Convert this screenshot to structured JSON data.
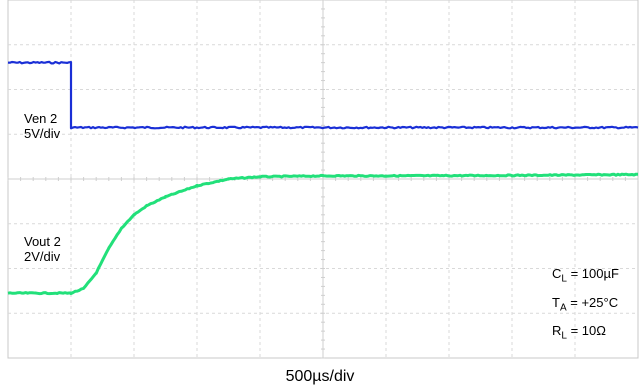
{
  "chart_data": {
    "type": "line",
    "x_scale_label": "500µs/div",
    "x_divisions": 10,
    "y_divisions": 8,
    "grid": true,
    "series": [
      {
        "name": "Ven 2",
        "label_line1": "Ven 2",
        "label_line2": "5V/div",
        "color": "#1a2fd6",
        "x_div": [
          0,
          1.0,
          1.0,
          10
        ],
        "y_div": [
          6.6,
          6.6,
          5.15,
          5.15
        ]
      },
      {
        "name": "Vout 2",
        "label_line1": "Vout 2",
        "label_line2": "2V/div",
        "color": "#22e07a",
        "x_div": [
          0,
          1.0,
          1.2,
          1.4,
          1.6,
          1.8,
          2.0,
          2.2,
          2.5,
          3.0,
          3.5,
          4.0,
          5.0,
          6.0,
          8.0,
          10.0
        ],
        "y_div": [
          1.45,
          1.45,
          1.55,
          1.9,
          2.45,
          2.9,
          3.2,
          3.4,
          3.6,
          3.85,
          4.0,
          4.05,
          4.07,
          4.07,
          4.08,
          4.1
        ]
      }
    ]
  },
  "conditions": {
    "cl_main": "C",
    "cl_sub": "L",
    "cl_value": " = 100µF",
    "ta_main": "T",
    "ta_sub": "A",
    "ta_value": " = +25°C",
    "rl_main": "R",
    "rl_sub": "L",
    "rl_value": " = 10Ω"
  },
  "colors": {
    "grid": "#d9d9d9",
    "axis": "#cfcfcf",
    "frame": "#c8c8c8"
  }
}
